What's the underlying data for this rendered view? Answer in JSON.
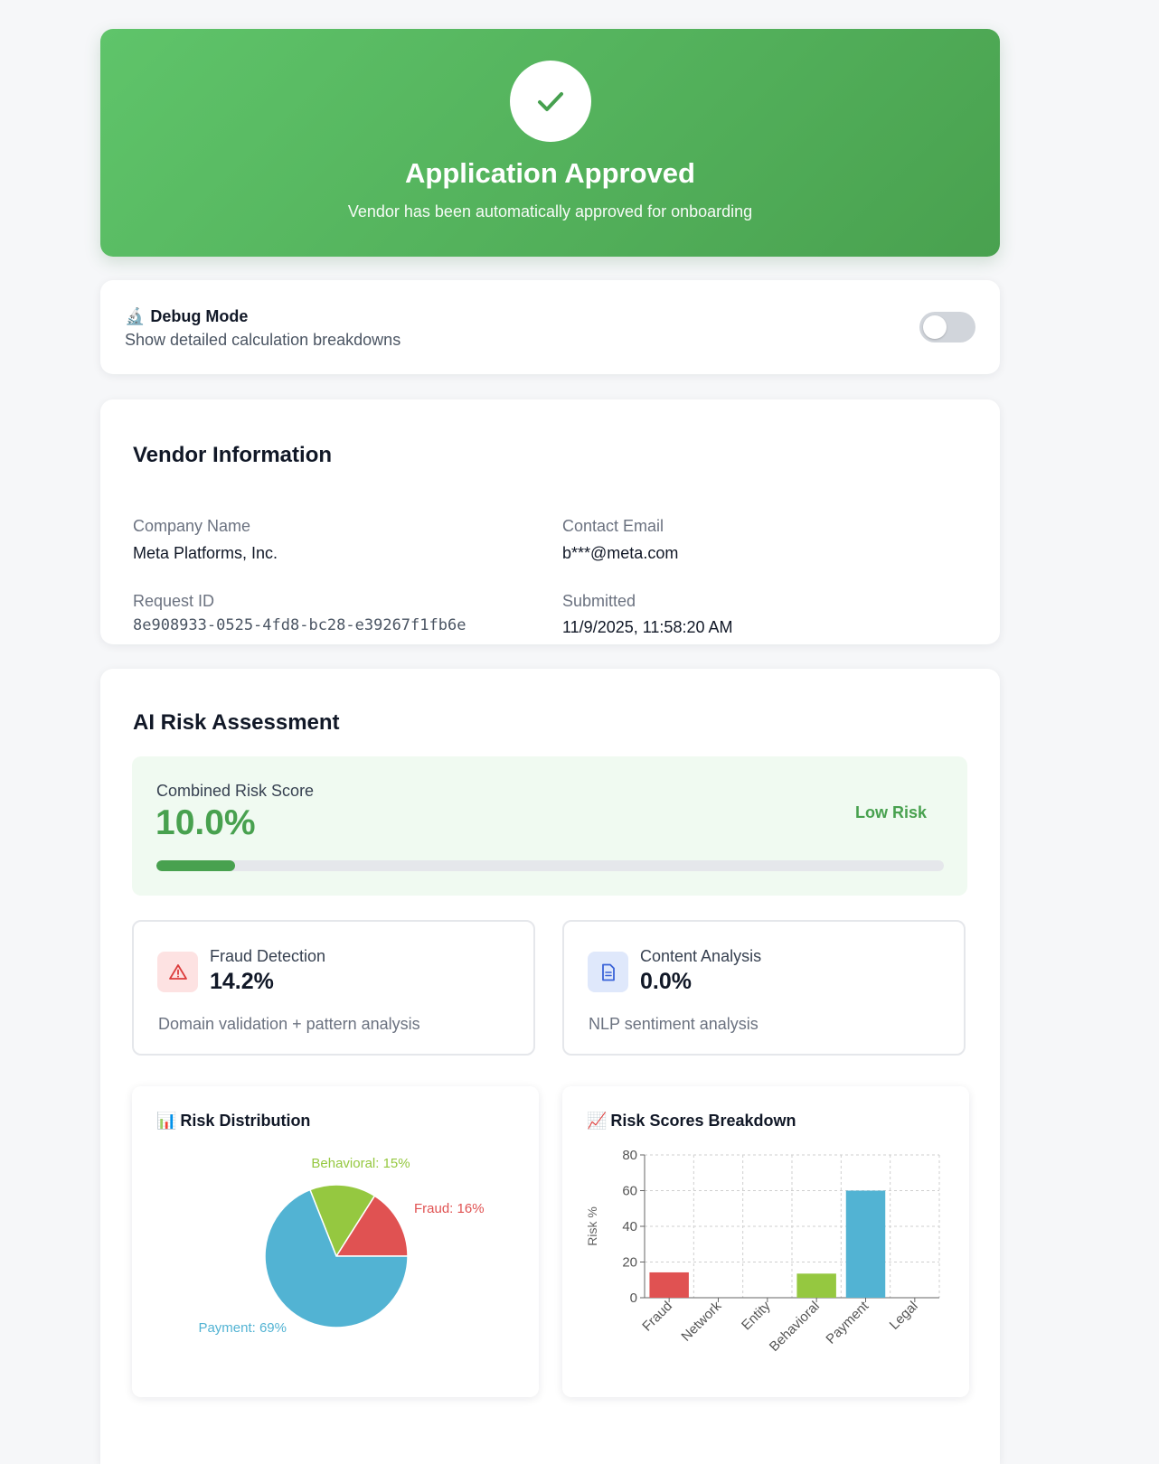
{
  "banner": {
    "title": "Application Approved",
    "subtitle": "Vendor has been automatically approved for onboarding",
    "icon": "check-icon",
    "color": "#4caf50"
  },
  "debug": {
    "title": "Debug Mode",
    "icon": "microscope-icon",
    "subtitle": "Show detailed calculation breakdowns",
    "enabled": false
  },
  "vendor": {
    "title": "Vendor Information",
    "company_label": "Company Name",
    "company_value": "Meta Platforms, Inc.",
    "email_label": "Contact Email",
    "email_value": "b***@meta.com",
    "request_label": "Request ID",
    "request_value": "8e908933-0525-4fd8-bc28-e39267f1fb6e",
    "submitted_label": "Submitted",
    "submitted_value": "11/9/2025, 11:58:20 AM"
  },
  "risk": {
    "title": "AI Risk Assessment",
    "combined_label": "Combined Risk Score",
    "combined_value": "10.0%",
    "combined_fraction": 0.1,
    "level": "Low Risk",
    "fraud": {
      "title": "Fraud Detection",
      "value": "14.2%",
      "desc": "Domain validation + pattern analysis",
      "icon": "warning-icon"
    },
    "content": {
      "title": "Content Analysis",
      "value": "0.0%",
      "desc": "NLP sentiment analysis",
      "icon": "document-icon"
    },
    "distribution_title": "Risk Distribution",
    "breakdown_title": "Risk Scores Breakdown"
  },
  "chart_data": [
    {
      "type": "pie",
      "title": "Risk Distribution",
      "slices": [
        {
          "label": "Fraud: 16%",
          "value": 16,
          "color": "#e05252"
        },
        {
          "label": "Behavioral: 15%",
          "value": 15,
          "color": "#95c840"
        },
        {
          "label": "Payment: 69%",
          "value": 69,
          "color": "#52b3d3"
        }
      ]
    },
    {
      "type": "bar",
      "title": "Risk Scores Breakdown",
      "categories": [
        "Fraud",
        "Network",
        "Entity",
        "Behavioral",
        "Payment",
        "Legal"
      ],
      "values": [
        14.2,
        0,
        0,
        13.5,
        60,
        0
      ],
      "colors": [
        "#e05252",
        "#cccccc",
        "#cccccc",
        "#95c840",
        "#52b3d3",
        "#cccccc"
      ],
      "ylabel": "Risk %",
      "ylim": [
        0,
        80
      ],
      "yticks": [
        0,
        20,
        40,
        60,
        80
      ],
      "grid": true
    }
  ]
}
